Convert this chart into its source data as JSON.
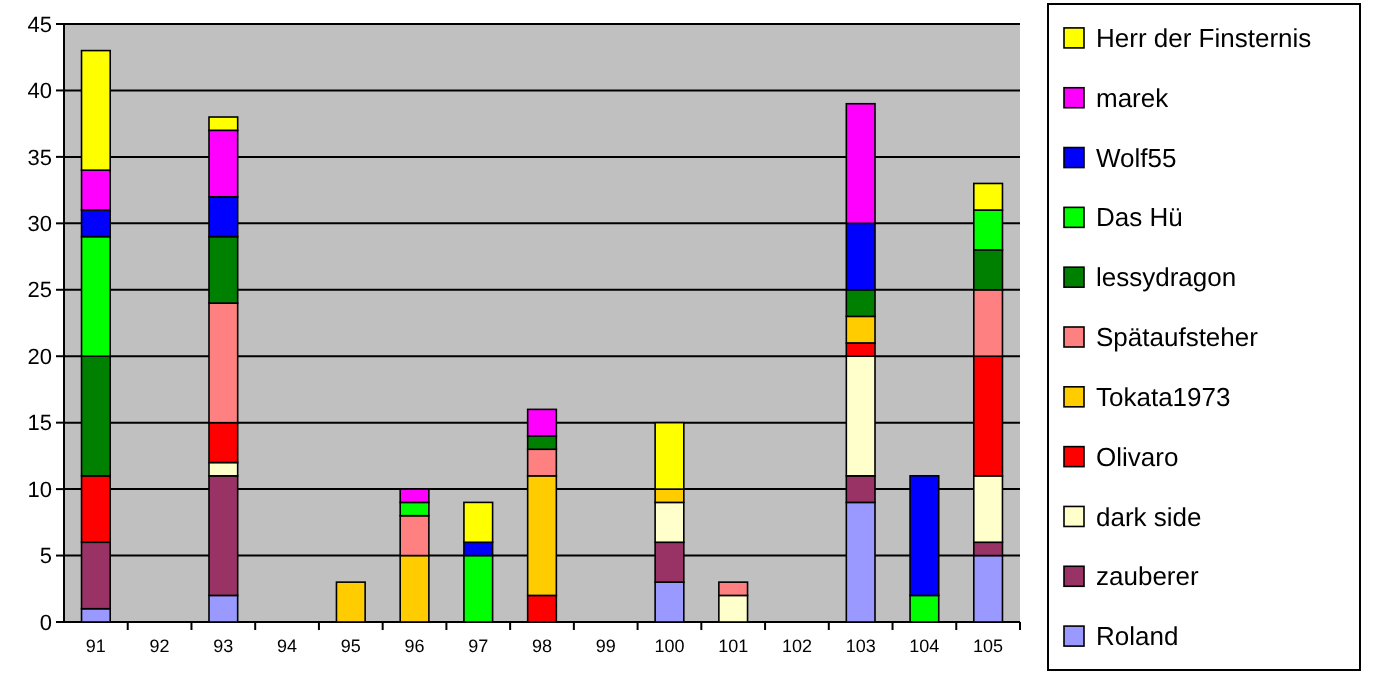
{
  "chart_data": {
    "type": "bar",
    "stacked": true,
    "categories": [
      "91",
      "92",
      "93",
      "94",
      "95",
      "96",
      "97",
      "98",
      "99",
      "100",
      "101",
      "102",
      "103",
      "104",
      "105"
    ],
    "ylim": [
      0,
      45
    ],
    "yticks": [
      0,
      5,
      10,
      15,
      20,
      25,
      30,
      35,
      40,
      45
    ],
    "grid": "y",
    "legend": "right",
    "series": [
      {
        "name": "Roland",
        "color": "#9999ff",
        "values": [
          1,
          null,
          2,
          null,
          null,
          null,
          null,
          null,
          null,
          3,
          null,
          null,
          9,
          null,
          5
        ]
      },
      {
        "name": "zauberer",
        "color": "#993366",
        "values": [
          5,
          null,
          9,
          null,
          null,
          null,
          null,
          null,
          null,
          3,
          null,
          null,
          2,
          null,
          1
        ]
      },
      {
        "name": "dark side",
        "color": "#ffffcc",
        "values": [
          null,
          null,
          1,
          null,
          null,
          null,
          null,
          null,
          null,
          3,
          2,
          null,
          9,
          null,
          5
        ]
      },
      {
        "name": "Olivaro",
        "color": "#ff0000",
        "values": [
          5,
          null,
          3,
          null,
          null,
          null,
          null,
          2,
          null,
          null,
          null,
          null,
          1,
          null,
          9
        ]
      },
      {
        "name": "Tokata1973",
        "color": "#ffcc00",
        "values": [
          null,
          null,
          null,
          null,
          3,
          5,
          null,
          9,
          null,
          1,
          null,
          null,
          2,
          null,
          null
        ]
      },
      {
        "name": "Spätaufsteher",
        "color": "#ff8080",
        "values": [
          null,
          null,
          9,
          null,
          null,
          3,
          null,
          2,
          null,
          null,
          1,
          null,
          null,
          null,
          5
        ]
      },
      {
        "name": "lessydragon",
        "color": "#008000",
        "values": [
          9,
          null,
          5,
          null,
          null,
          null,
          null,
          1,
          null,
          null,
          null,
          null,
          2,
          null,
          3
        ]
      },
      {
        "name": "Das Hü",
        "color": "#00ff00",
        "values": [
          9,
          null,
          null,
          null,
          null,
          1,
          5,
          null,
          null,
          null,
          null,
          null,
          null,
          2,
          3
        ]
      },
      {
        "name": "Wolf55",
        "color": "#0000ff",
        "values": [
          2,
          null,
          3,
          null,
          null,
          null,
          1,
          null,
          null,
          null,
          null,
          null,
          5,
          9,
          null
        ]
      },
      {
        "name": "marek",
        "color": "#ff00ff",
        "values": [
          3,
          null,
          5,
          null,
          null,
          1,
          null,
          2,
          null,
          null,
          null,
          null,
          9,
          null,
          null
        ]
      },
      {
        "name": "Herr der Finsternis",
        "color": "#ffff00",
        "values": [
          9,
          null,
          1,
          null,
          null,
          null,
          3,
          null,
          null,
          5,
          null,
          null,
          null,
          null,
          2
        ]
      }
    ]
  }
}
